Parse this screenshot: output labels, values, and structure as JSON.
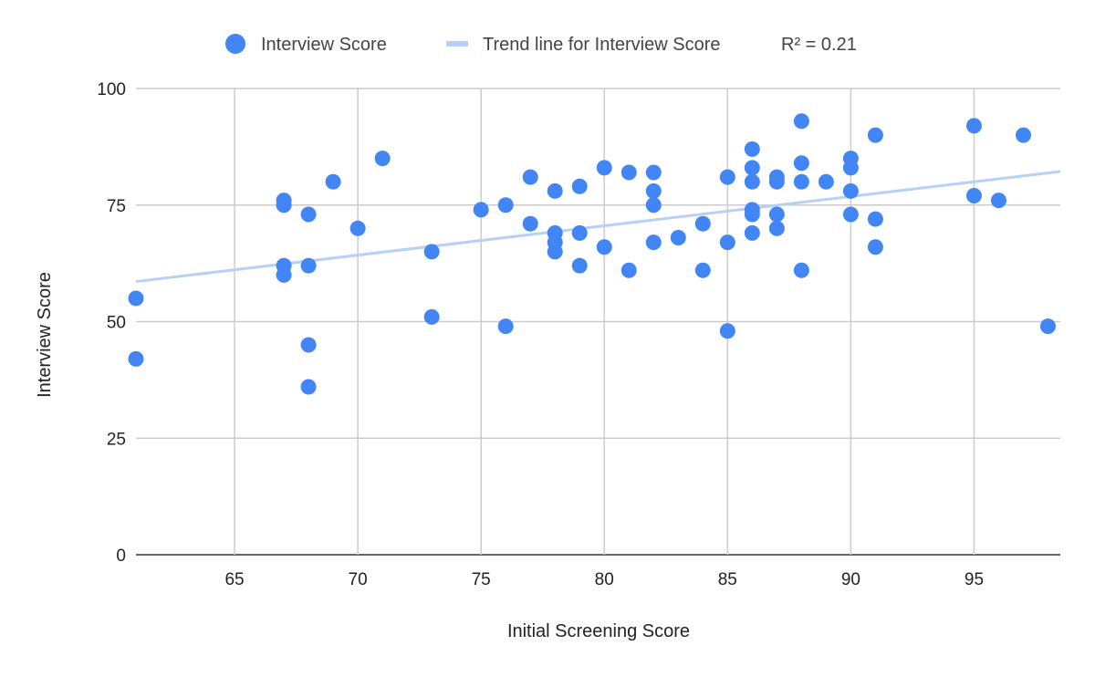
{
  "chart_data": {
    "type": "scatter",
    "title": "",
    "xlabel": "Initial Screening Score",
    "ylabel": "Interview Score",
    "xlim": [
      61,
      98.5
    ],
    "ylim": [
      0,
      100
    ],
    "x_ticks": [
      65,
      70,
      75,
      80,
      85,
      90,
      95
    ],
    "y_ticks": [
      0,
      25,
      50,
      75,
      100
    ],
    "grid": true,
    "legend_position": "top",
    "series": [
      {
        "name": "Interview Score",
        "color": "#4285f4",
        "points": [
          [
            61,
            55
          ],
          [
            61,
            42
          ],
          [
            67,
            76
          ],
          [
            67,
            75
          ],
          [
            67,
            62
          ],
          [
            67,
            60
          ],
          [
            68,
            73
          ],
          [
            68,
            62
          ],
          [
            68,
            45
          ],
          [
            68,
            36
          ],
          [
            69,
            80
          ],
          [
            70,
            70
          ],
          [
            71,
            85
          ],
          [
            73,
            65
          ],
          [
            73,
            51
          ],
          [
            75,
            74
          ],
          [
            76,
            75
          ],
          [
            76,
            49
          ],
          [
            77,
            81
          ],
          [
            77,
            71
          ],
          [
            78,
            78
          ],
          [
            78,
            69
          ],
          [
            78,
            67
          ],
          [
            78,
            65
          ],
          [
            79,
            79
          ],
          [
            79,
            69
          ],
          [
            79,
            62
          ],
          [
            80,
            83
          ],
          [
            80,
            66
          ],
          [
            81,
            82
          ],
          [
            81,
            61
          ],
          [
            82,
            82
          ],
          [
            82,
            78
          ],
          [
            82,
            75
          ],
          [
            82,
            67
          ],
          [
            83,
            68
          ],
          [
            84,
            71
          ],
          [
            84,
            61
          ],
          [
            85,
            81
          ],
          [
            85,
            67
          ],
          [
            85,
            48
          ],
          [
            86,
            87
          ],
          [
            86,
            83
          ],
          [
            86,
            80
          ],
          [
            86,
            74
          ],
          [
            86,
            73
          ],
          [
            86,
            69
          ],
          [
            87,
            81
          ],
          [
            87,
            80
          ],
          [
            87,
            73
          ],
          [
            87,
            70
          ],
          [
            88,
            93
          ],
          [
            88,
            84
          ],
          [
            88,
            80
          ],
          [
            88,
            61
          ],
          [
            89,
            80
          ],
          [
            90,
            85
          ],
          [
            90,
            83
          ],
          [
            90,
            78
          ],
          [
            90,
            73
          ],
          [
            91,
            90
          ],
          [
            91,
            72
          ],
          [
            91,
            66
          ],
          [
            95,
            92
          ],
          [
            95,
            77
          ],
          [
            96,
            76
          ],
          [
            97,
            90
          ],
          [
            98,
            49
          ]
        ]
      }
    ],
    "trendline": {
      "name": "Trend line for Interview Score",
      "r2_label": "R² = 0.21",
      "color": "#b7d0f8",
      "y_at_xmin": 58.6,
      "y_at_xmax": 82.2
    }
  }
}
